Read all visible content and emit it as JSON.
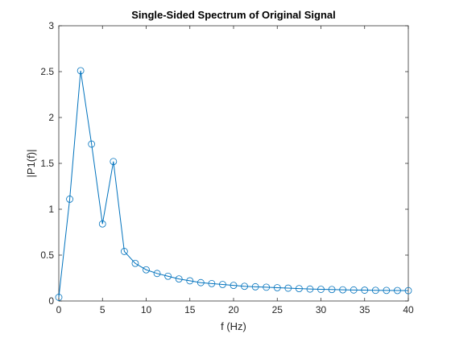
{
  "chart_data": {
    "type": "line",
    "title": "Single-Sided Spectrum of Original Signal",
    "xlabel": "f (Hz)",
    "ylabel": "|P1(f)|",
    "xlim": [
      0,
      40
    ],
    "ylim": [
      0,
      3
    ],
    "xticks": [
      0,
      5,
      10,
      15,
      20,
      25,
      30,
      35,
      40
    ],
    "yticks": [
      0,
      0.5,
      1,
      1.5,
      2,
      2.5,
      3
    ],
    "xtick_labels": [
      "0",
      "5",
      "10",
      "15",
      "20",
      "25",
      "30",
      "35",
      "40"
    ],
    "ytick_labels": [
      "0",
      "0.5",
      "1",
      "1.5",
      "2",
      "2.5",
      "3"
    ],
    "grid": false,
    "marker": "circle",
    "series": [
      {
        "color": "#0072BD",
        "x": [
          0,
          1.25,
          2.5,
          3.75,
          5,
          6.25,
          7.5,
          8.75,
          10,
          11.25,
          12.5,
          13.75,
          15,
          16.25,
          17.5,
          18.75,
          20,
          21.25,
          22.5,
          23.75,
          25,
          26.25,
          27.5,
          28.75,
          30,
          31.25,
          32.5,
          33.75,
          35,
          36.25,
          37.5,
          38.75,
          40
        ],
        "y": [
          0.04,
          1.11,
          2.51,
          1.71,
          0.84,
          1.52,
          0.54,
          0.41,
          0.34,
          0.3,
          0.27,
          0.24,
          0.22,
          0.2,
          0.19,
          0.18,
          0.17,
          0.16,
          0.155,
          0.15,
          0.145,
          0.14,
          0.135,
          0.13,
          0.127,
          0.125,
          0.122,
          0.12,
          0.118,
          0.116,
          0.115,
          0.114,
          0.113
        ]
      }
    ]
  }
}
